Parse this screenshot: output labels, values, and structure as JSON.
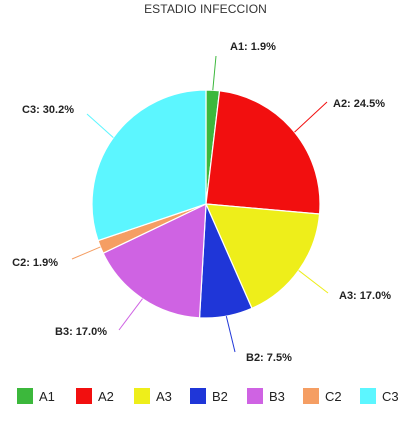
{
  "chart_data": {
    "type": "pie",
    "title": "ESTADIO INFECCION",
    "legend_position": "bottom",
    "slices": [
      {
        "label": "A1",
        "value": 1.9,
        "display": "A1: 1.9%",
        "color": "#3cb83c"
      },
      {
        "label": "A2",
        "value": 24.5,
        "display": "A2: 24.5%",
        "color": "#f20f0f"
      },
      {
        "label": "A3",
        "value": 17.0,
        "display": "A3: 17.0%",
        "color": "#eeee1a"
      },
      {
        "label": "B2",
        "value": 7.5,
        "display": "B2: 7.5%",
        "color": "#1f36d8"
      },
      {
        "label": "B3",
        "value": 17.0,
        "display": "B3: 17.0%",
        "color": "#cf63e3"
      },
      {
        "label": "C2",
        "value": 1.9,
        "display": "C2: 1.9%",
        "color": "#f59e63"
      },
      {
        "label": "C3",
        "value": 30.2,
        "display": "C3: 30.2%",
        "color": "#5cf6ff"
      }
    ]
  }
}
